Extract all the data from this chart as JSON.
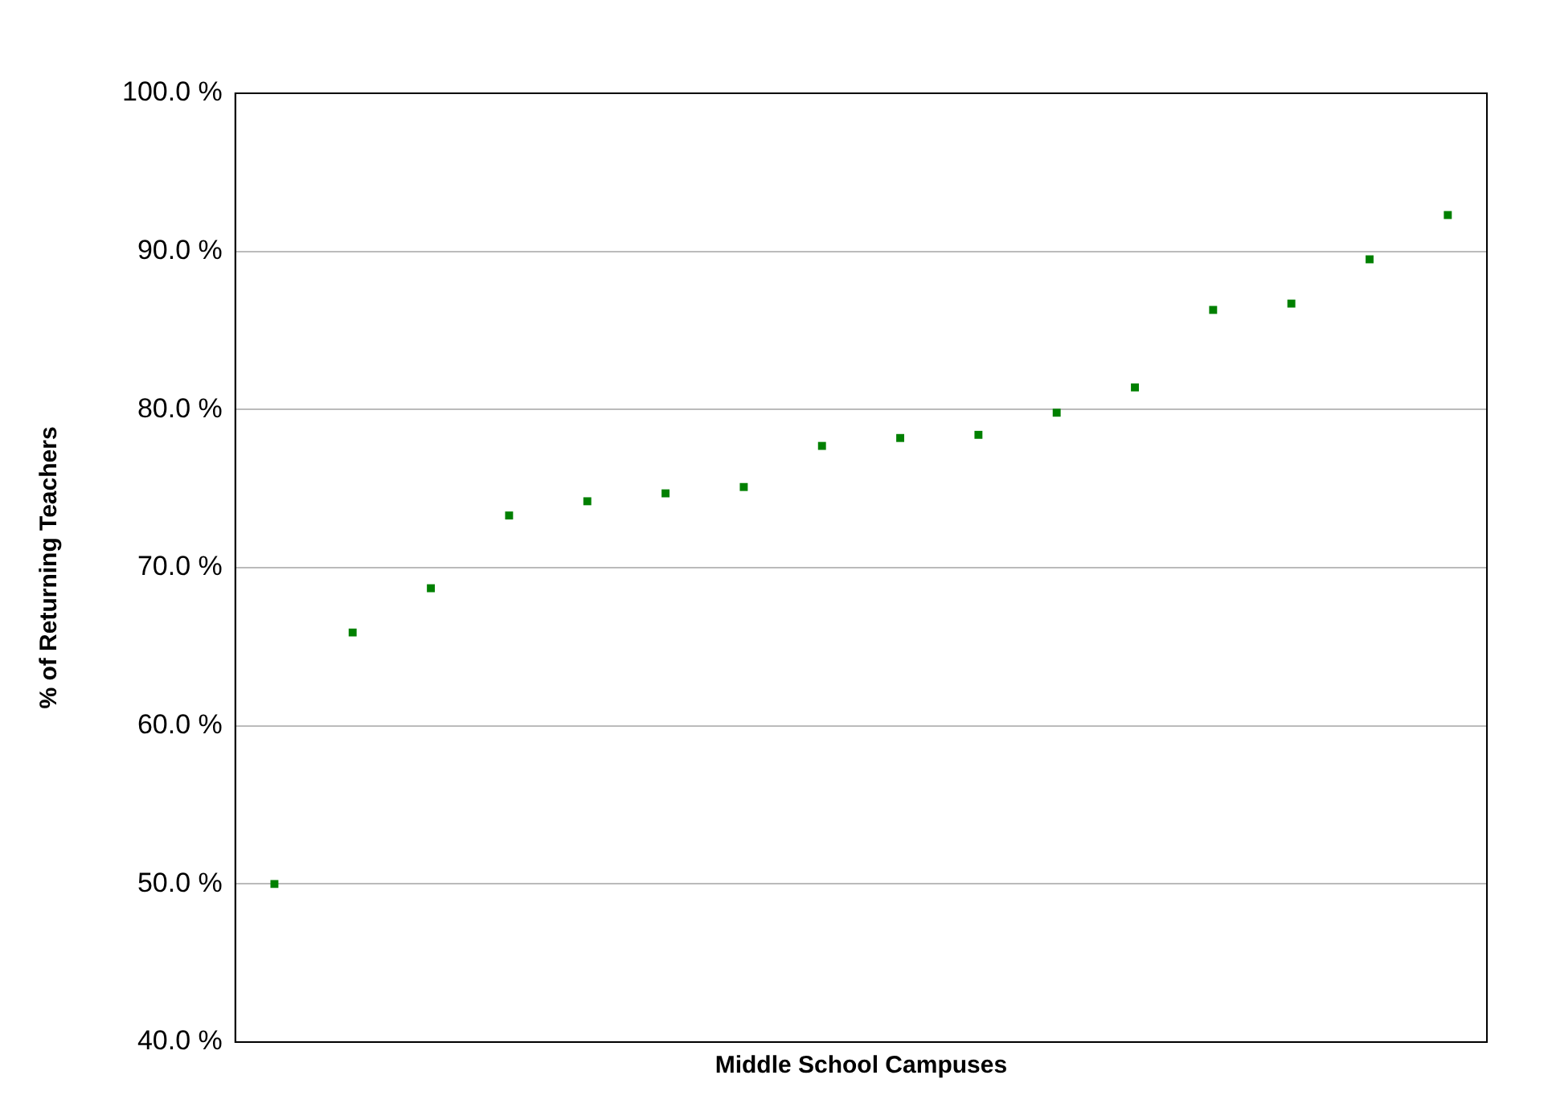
{
  "chart_data": {
    "type": "scatter",
    "xlabel": "Middle School Campuses",
    "ylabel": "% of Returning Teachers",
    "categories": [
      null,
      null,
      null,
      null,
      null,
      null,
      null,
      null,
      null,
      null,
      null,
      null,
      null,
      null,
      null,
      null
    ],
    "series": [
      {
        "color": "#008000",
        "values": [
          50.0,
          65.9,
          68.7,
          73.3,
          74.2,
          74.7,
          75.1,
          77.7,
          78.2,
          78.4,
          79.8,
          81.4,
          86.3,
          86.7,
          89.5,
          92.3
        ]
      }
    ],
    "ylim": [
      40,
      100
    ],
    "yticks": [
      {
        "value": 40,
        "label": "40.0 %"
      },
      {
        "value": 50,
        "label": "50.0 %"
      },
      {
        "value": 60,
        "label": "60.0 %"
      },
      {
        "value": 70,
        "label": "70.0 %"
      },
      {
        "value": 80,
        "label": "80.0 %"
      },
      {
        "value": 90,
        "label": "90.0 %"
      },
      {
        "value": 100,
        "label": "100.0 %"
      }
    ],
    "grid": "y",
    "marker": "square"
  }
}
